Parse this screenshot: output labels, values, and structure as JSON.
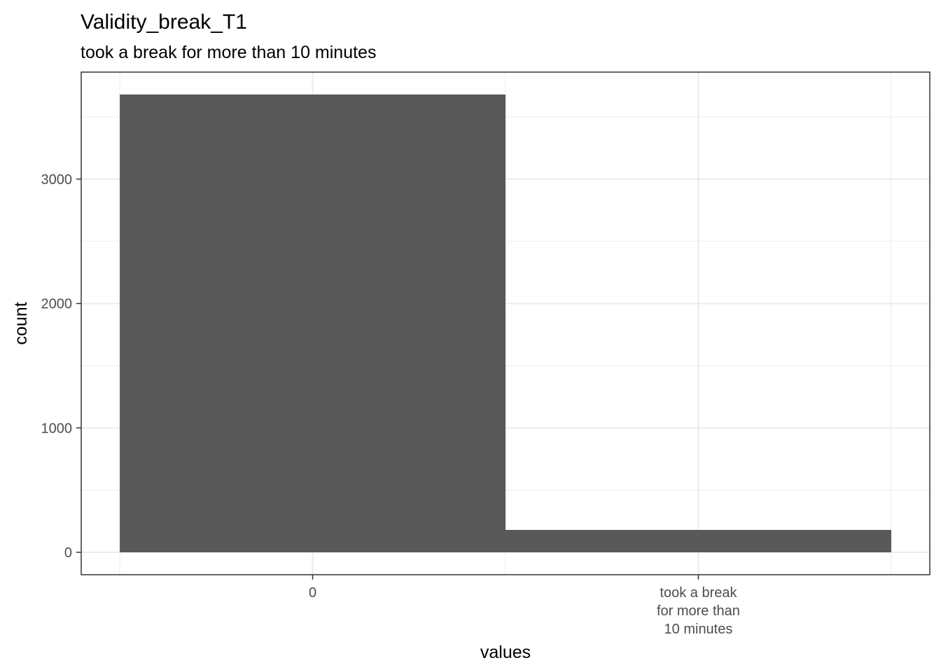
{
  "chart_data": {
    "type": "bar",
    "title": "Validity_break_T1",
    "subtitle": "took a break for more than 10 minutes",
    "xlabel": "values",
    "ylabel": "count",
    "categories": [
      "0",
      "took a break\nfor more than\n10 minutes"
    ],
    "values": [
      3680,
      180
    ],
    "ylim": [
      -180,
      3860
    ],
    "yticks": [
      0,
      1000,
      2000,
      3000
    ],
    "grid": true,
    "bar_color": "#595959",
    "grid_color": "#ebebeb",
    "panel_border_color": "#333333"
  }
}
